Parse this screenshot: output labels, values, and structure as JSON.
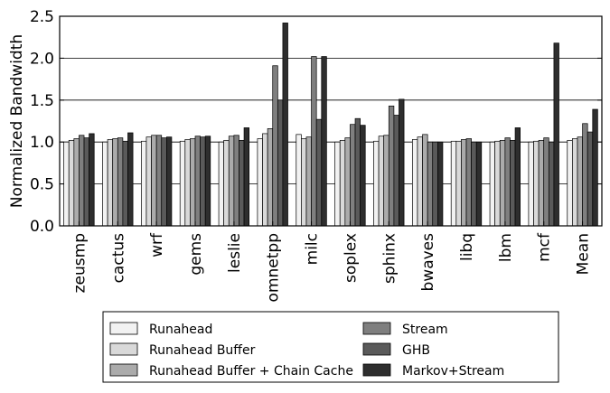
{
  "chart_data": {
    "type": "bar",
    "title": "",
    "xlabel": "",
    "ylabel": "Normalized Bandwidth",
    "ylim": [
      0.0,
      2.5
    ],
    "yticks": [
      "0.0",
      "0.5",
      "1.0",
      "1.5",
      "2.0",
      "2.5"
    ],
    "grid": "horizontal",
    "legend_position": "bottom",
    "categories": [
      "zeusmp",
      "cactus",
      "wrf",
      "gems",
      "leslie",
      "omnetpp",
      "milc",
      "soplex",
      "sphinx",
      "bwaves",
      "libq",
      "lbm",
      "mcf",
      "Mean"
    ],
    "series": [
      {
        "name": "Runahead",
        "color": "#f2f2f2",
        "values": [
          1.0,
          1.0,
          1.01,
          1.01,
          1.0,
          1.04,
          1.09,
          1.0,
          1.01,
          1.03,
          1.01,
          1.0,
          1.0,
          1.02
        ]
      },
      {
        "name": "Runahead Buffer",
        "color": "#d9d9d9",
        "values": [
          1.02,
          1.03,
          1.06,
          1.03,
          1.02,
          1.1,
          1.04,
          1.02,
          1.07,
          1.06,
          1.01,
          1.01,
          1.01,
          1.04
        ]
      },
      {
        "name": "Runahead Buffer + Chain Cache",
        "color": "#ababab",
        "values": [
          1.04,
          1.04,
          1.08,
          1.04,
          1.07,
          1.16,
          1.06,
          1.05,
          1.08,
          1.09,
          1.03,
          1.02,
          1.02,
          1.06
        ]
      },
      {
        "name": "Stream",
        "color": "#7f7f7f",
        "values": [
          1.08,
          1.05,
          1.08,
          1.07,
          1.08,
          1.91,
          2.02,
          1.21,
          1.43,
          1.0,
          1.04,
          1.05,
          1.05,
          1.22
        ]
      },
      {
        "name": "GHB",
        "color": "#5a5a5a",
        "values": [
          1.05,
          1.01,
          1.05,
          1.06,
          1.02,
          1.5,
          1.27,
          1.28,
          1.32,
          1.0,
          1.0,
          1.02,
          1.0,
          1.12
        ]
      },
      {
        "name": "Markov+Stream",
        "color": "#2e2e2e",
        "values": [
          1.1,
          1.11,
          1.06,
          1.07,
          1.17,
          2.42,
          2.02,
          1.2,
          1.51,
          1.0,
          1.0,
          1.17,
          2.18,
          1.39
        ]
      }
    ]
  }
}
